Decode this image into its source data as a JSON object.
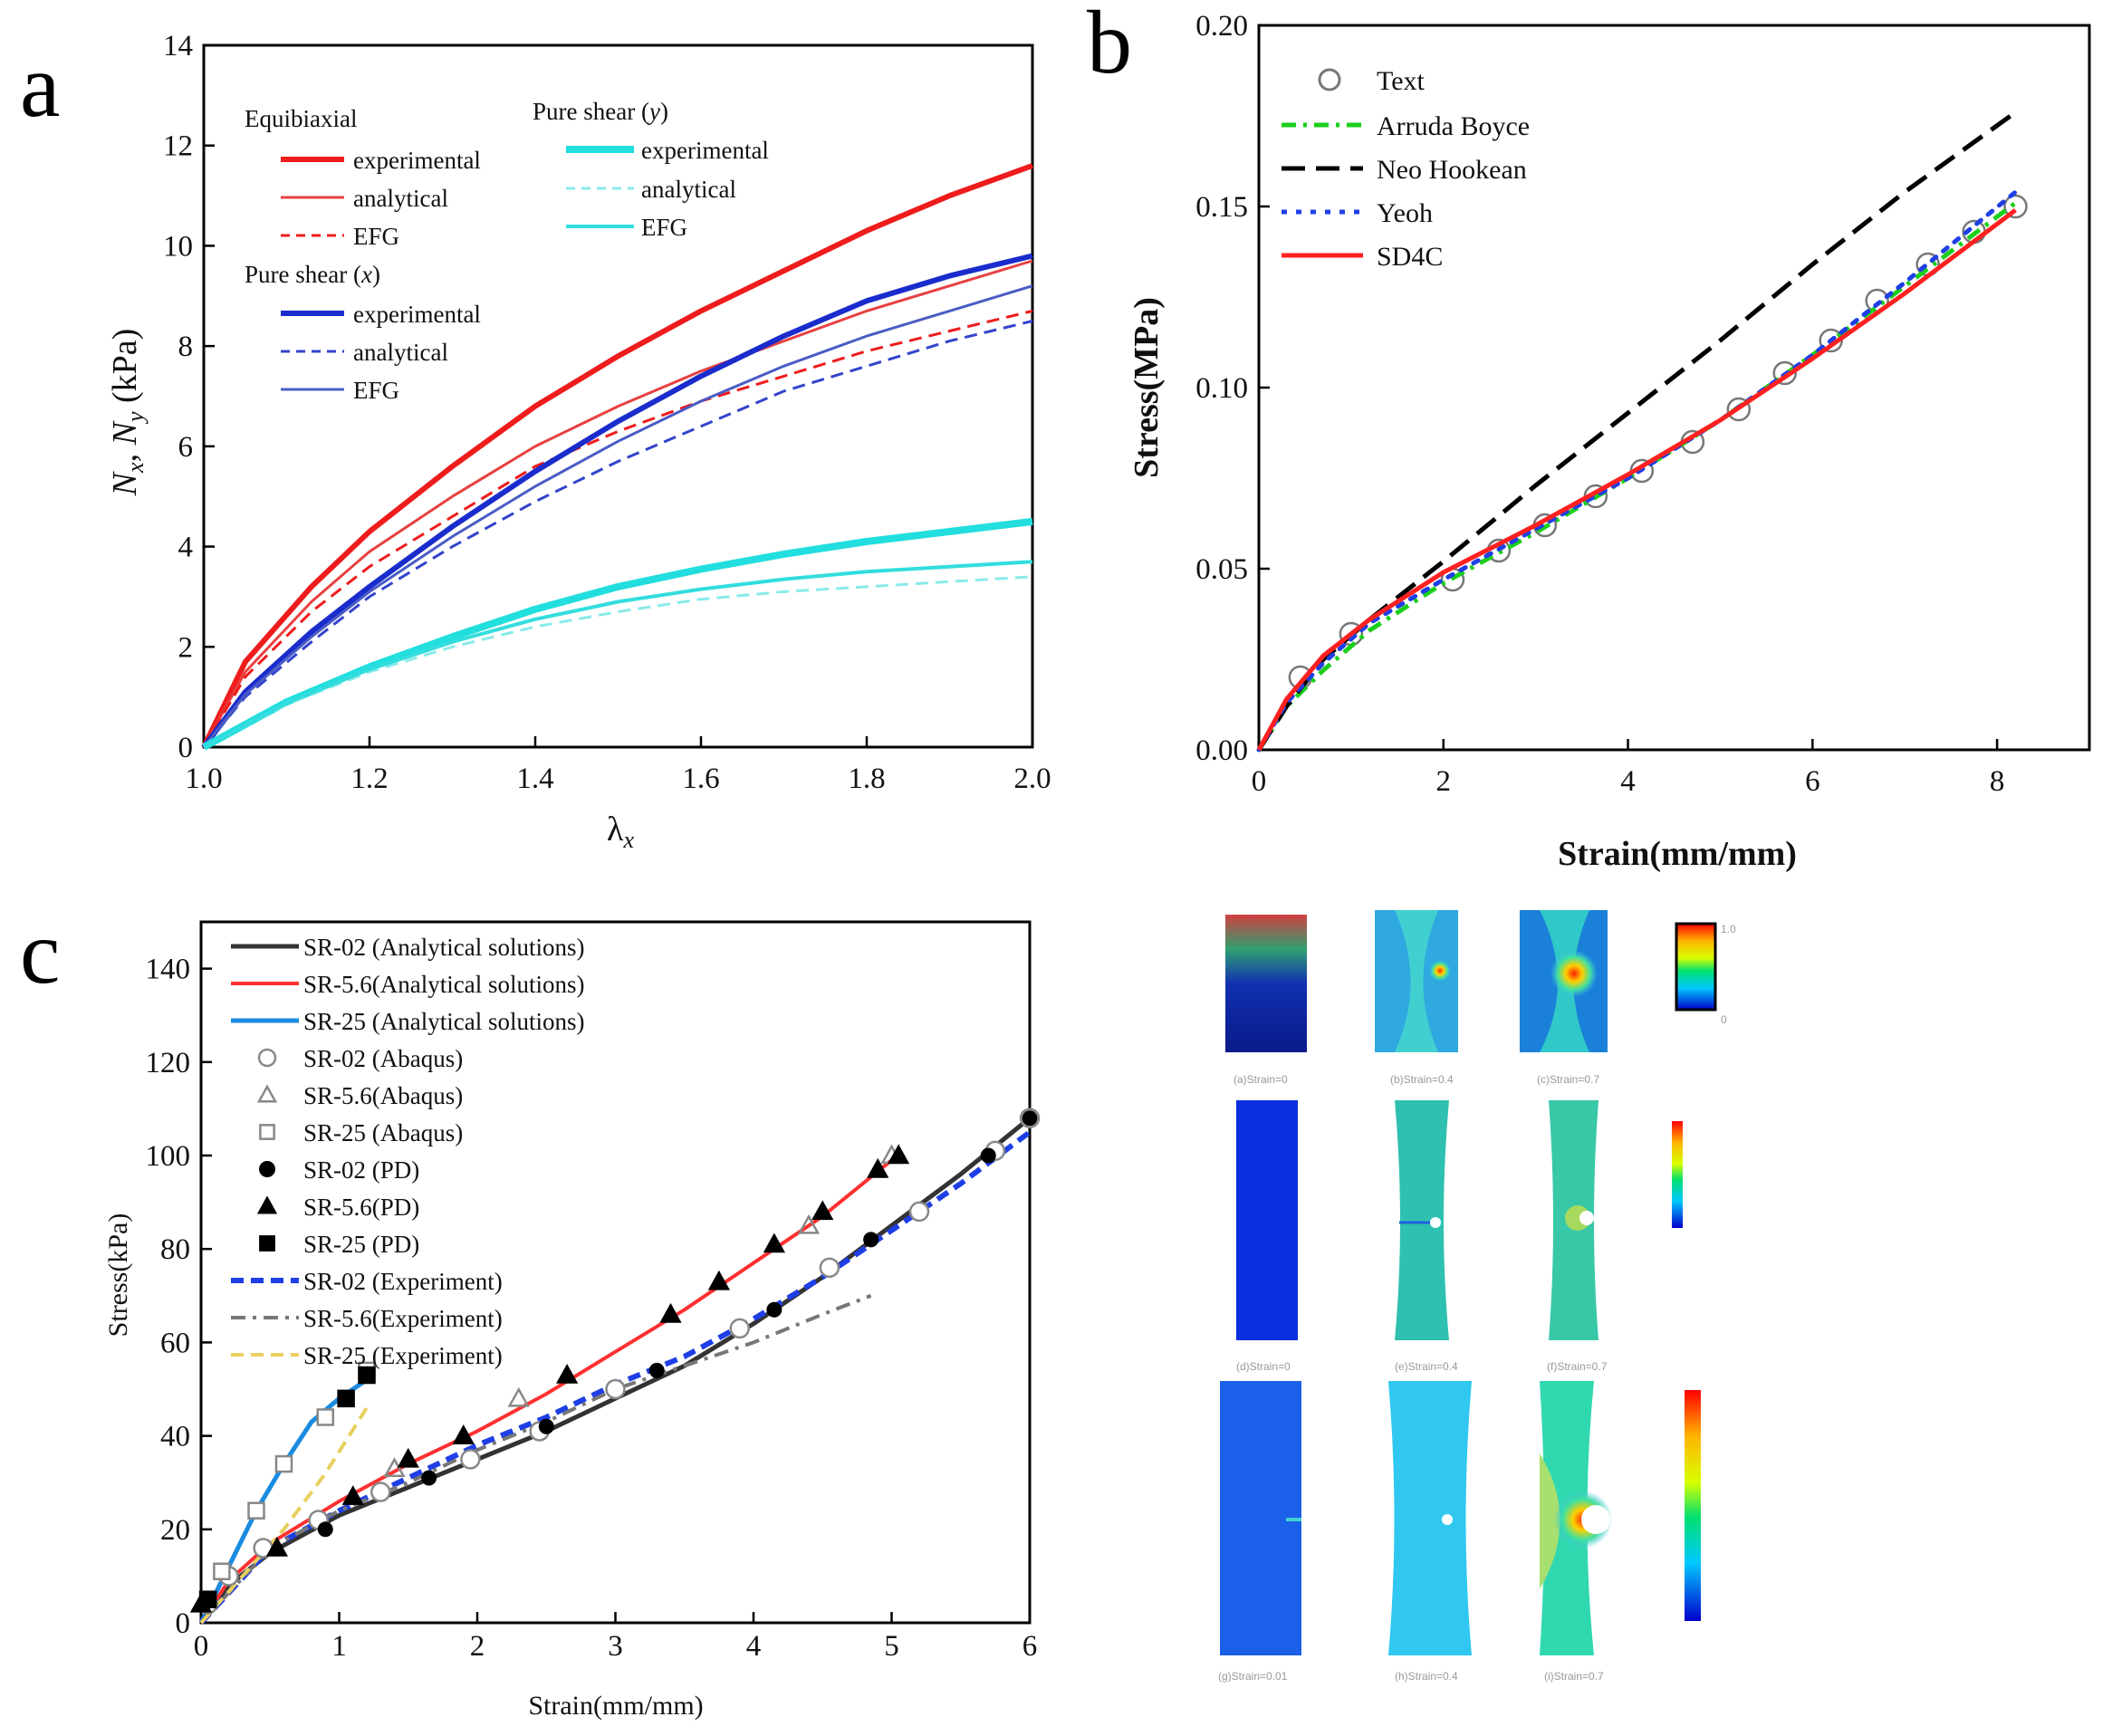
{
  "panels": {
    "a": {
      "letter": "a"
    },
    "b": {
      "letter": "b"
    },
    "c": {
      "letter": "c"
    }
  },
  "chart_data": [
    {
      "panel": "a",
      "type": "line",
      "xlabel": "λ",
      "xlabel_sub": "x",
      "ylabel": "N",
      "ylabel_sub_x": "x",
      "ylabel_sep": ", ",
      "ylabel_sub_y": "y",
      "ylabel_unit": " (kPa)",
      "xlim": [
        1.0,
        2.0
      ],
      "ylim": [
        0,
        14
      ],
      "xticks": [
        "1.0",
        "1.2",
        "1.4",
        "1.6",
        "1.8",
        "2.0"
      ],
      "yticks": [
        "0",
        "2",
        "4",
        "6",
        "8",
        "10",
        "12",
        "14"
      ],
      "legend_groups": [
        {
          "title": "Equibiaxial",
          "items": [
            "experimental",
            "analytical",
            "EFG"
          ]
        },
        {
          "title": "Pure shear (x)",
          "items": [
            "experimental",
            "analytical",
            "EFG"
          ]
        },
        {
          "title": "Pure shear (y)",
          "items": [
            "experimental",
            "analytical",
            "EFG"
          ]
        }
      ],
      "series": [
        {
          "name": "Equibiaxial experimental",
          "color": "#ee1c1c",
          "style": "solid",
          "width": 6,
          "x": [
            1.0,
            1.05,
            1.13,
            1.2,
            1.3,
            1.4,
            1.5,
            1.6,
            1.7,
            1.8,
            1.9,
            2.0
          ],
          "y": [
            0,
            1.7,
            3.2,
            4.3,
            5.6,
            6.8,
            7.8,
            8.7,
            9.5,
            10.3,
            11.0,
            11.6
          ]
        },
        {
          "name": "Equibiaxial analytical",
          "color": "#e84040",
          "style": "solid",
          "width": 3,
          "x": [
            1.0,
            1.05,
            1.13,
            1.2,
            1.3,
            1.4,
            1.5,
            1.6,
            1.7,
            1.8,
            1.9,
            2.0
          ],
          "y": [
            0,
            1.5,
            2.9,
            3.9,
            5.0,
            6.0,
            6.8,
            7.5,
            8.1,
            8.7,
            9.2,
            9.7
          ]
        },
        {
          "name": "Equibiaxial EFG",
          "color": "#ee1c1c",
          "style": "dash",
          "width": 3,
          "x": [
            1.0,
            1.05,
            1.13,
            1.2,
            1.3,
            1.4,
            1.5,
            1.6,
            1.7,
            1.8,
            1.9,
            2.0
          ],
          "y": [
            0,
            1.4,
            2.7,
            3.6,
            4.6,
            5.6,
            6.3,
            6.9,
            7.4,
            7.9,
            8.3,
            8.7
          ]
        },
        {
          "name": "Pure shear (x) experimental",
          "color": "#1a2ccc",
          "style": "solid",
          "width": 6,
          "x": [
            1.0,
            1.05,
            1.13,
            1.2,
            1.3,
            1.4,
            1.5,
            1.6,
            1.7,
            1.8,
            1.9,
            2.0
          ],
          "y": [
            0,
            1.1,
            2.3,
            3.2,
            4.4,
            5.5,
            6.5,
            7.4,
            8.2,
            8.9,
            9.4,
            9.8
          ]
        },
        {
          "name": "Pure shear (x) analytical",
          "color": "#3344cc",
          "style": "dash",
          "width": 3,
          "x": [
            1.0,
            1.05,
            1.13,
            1.2,
            1.3,
            1.4,
            1.5,
            1.6,
            1.7,
            1.8,
            1.9,
            2.0
          ],
          "y": [
            0,
            1.0,
            2.1,
            3.0,
            4.0,
            4.9,
            5.7,
            6.4,
            7.1,
            7.6,
            8.1,
            8.5
          ]
        },
        {
          "name": "Pure shear (x) EFG",
          "color": "#4a5cc4",
          "style": "solid",
          "width": 3,
          "x": [
            1.0,
            1.05,
            1.13,
            1.2,
            1.3,
            1.4,
            1.5,
            1.6,
            1.7,
            1.8,
            1.9,
            2.0
          ],
          "y": [
            0,
            1.05,
            2.2,
            3.1,
            4.2,
            5.2,
            6.1,
            6.9,
            7.6,
            8.2,
            8.7,
            9.2
          ]
        },
        {
          "name": "Pure shear (y) experimental",
          "color": "#22dede",
          "style": "solid",
          "width": 8,
          "x": [
            1.0,
            1.1,
            1.2,
            1.3,
            1.4,
            1.5,
            1.6,
            1.7,
            1.8,
            1.9,
            2.0
          ],
          "y": [
            0,
            0.9,
            1.6,
            2.2,
            2.75,
            3.2,
            3.55,
            3.85,
            4.1,
            4.3,
            4.5
          ]
        },
        {
          "name": "Pure shear (y) analytical",
          "color": "#8aeaea",
          "style": "dash",
          "width": 3,
          "x": [
            1.0,
            1.1,
            1.2,
            1.3,
            1.4,
            1.5,
            1.6,
            1.7,
            1.8,
            1.9,
            2.0
          ],
          "y": [
            0,
            0.85,
            1.5,
            2.0,
            2.4,
            2.7,
            2.95,
            3.1,
            3.2,
            3.3,
            3.4
          ]
        },
        {
          "name": "Pure shear (y) EFG",
          "color": "#33dddd",
          "style": "solid",
          "width": 4,
          "x": [
            1.0,
            1.1,
            1.2,
            1.3,
            1.4,
            1.5,
            1.6,
            1.7,
            1.8,
            1.9,
            2.0
          ],
          "y": [
            0,
            0.88,
            1.55,
            2.1,
            2.55,
            2.9,
            3.15,
            3.35,
            3.5,
            3.6,
            3.7
          ]
        }
      ]
    },
    {
      "panel": "b",
      "type": "line",
      "xlabel": "Strain(mm/mm)",
      "ylabel": "Stress(MPa)",
      "xlim": [
        0,
        9
      ],
      "ylim": [
        0,
        0.2
      ],
      "xticks": [
        "0",
        "2",
        "4",
        "6",
        "8"
      ],
      "yticks": [
        "0.00",
        "0.05",
        "0.10",
        "0.15",
        "0.20"
      ],
      "legend": [
        "Text",
        "Arruda Boyce",
        "Neo Hookean",
        "Yeoh",
        "SD4C"
      ],
      "series": [
        {
          "name": "Text",
          "color": "#777777",
          "style": "marker-circle",
          "x": [
            0.45,
            1.0,
            2.1,
            2.6,
            3.1,
            3.65,
            4.15,
            4.7,
            5.2,
            5.7,
            6.2,
            6.7,
            7.25,
            7.75,
            8.2
          ],
          "y": [
            0.02,
            0.032,
            0.047,
            0.055,
            0.062,
            0.07,
            0.077,
            0.085,
            0.094,
            0.104,
            0.113,
            0.124,
            0.134,
            0.143,
            0.15
          ]
        },
        {
          "name": "Arruda Boyce",
          "color": "#1ccf1c",
          "style": "dashdot",
          "width": 5,
          "x": [
            0,
            0.3,
            0.7,
            1.2,
            2.0,
            3.0,
            4.0,
            5.0,
            6.0,
            7.0,
            8.2
          ],
          "y": [
            0,
            0.012,
            0.022,
            0.033,
            0.046,
            0.06,
            0.075,
            0.091,
            0.109,
            0.128,
            0.151
          ]
        },
        {
          "name": "Neo Hookean",
          "color": "#000000",
          "style": "longdash",
          "width": 5,
          "x": [
            0,
            0.3,
            0.7,
            1.2,
            2.0,
            3.0,
            4.0,
            5.0,
            6.0,
            7.0,
            8.2
          ],
          "y": [
            0,
            0.012,
            0.025,
            0.036,
            0.052,
            0.073,
            0.093,
            0.113,
            0.134,
            0.154,
            0.176
          ]
        },
        {
          "name": "Yeoh",
          "color": "#1f3fe6",
          "style": "dot",
          "width": 5,
          "x": [
            0,
            0.3,
            0.7,
            1.2,
            2.0,
            3.0,
            4.0,
            5.0,
            6.0,
            7.0,
            8.2
          ],
          "y": [
            0,
            0.013,
            0.024,
            0.035,
            0.047,
            0.061,
            0.075,
            0.091,
            0.109,
            0.129,
            0.154
          ]
        },
        {
          "name": "SD4C",
          "color": "#ff2020",
          "style": "solid",
          "width": 5,
          "x": [
            0,
            0.3,
            0.7,
            1.2,
            2.0,
            3.0,
            4.0,
            5.0,
            6.0,
            7.0,
            8.2
          ],
          "y": [
            0,
            0.014,
            0.026,
            0.036,
            0.049,
            0.062,
            0.076,
            0.091,
            0.108,
            0.126,
            0.149
          ]
        }
      ]
    },
    {
      "panel": "c",
      "type": "line",
      "xlabel": "Strain(mm/mm)",
      "ylabel": "Stress(kPa)",
      "xlim": [
        0,
        6
      ],
      "ylim": [
        0,
        150
      ],
      "xticks": [
        "0",
        "1",
        "2",
        "3",
        "4",
        "5",
        "6"
      ],
      "yticks": [
        "0",
        "20",
        "40",
        "60",
        "80",
        "100",
        "120",
        "140"
      ],
      "legend": [
        "SR-02 (Analytical solutions)",
        "SR-5.6(Analytical solutions)",
        "SR-25 (Analytical solutions)",
        "SR-02 (Abaqus)",
        "SR-5.6(Abaqus)",
        "SR-25 (Abaqus)",
        "SR-02 (PD)",
        "SR-5.6(PD)",
        "SR-25 (PD)",
        "SR-02 (Experiment)",
        "SR-5.6(Experiment)",
        "SR-25 (Experiment)"
      ],
      "series": [
        {
          "name": "SR-02 (Analytical solutions)",
          "color": "#333333",
          "style": "solid",
          "width": 5,
          "x": [
            0,
            0.2,
            0.5,
            1.0,
            1.5,
            2.0,
            2.5,
            3.0,
            3.5,
            4.0,
            4.5,
            5.0,
            5.5,
            6.0
          ],
          "y": [
            0,
            8,
            15,
            23,
            29,
            35,
            41,
            48,
            55,
            64,
            74,
            85,
            96,
            108
          ]
        },
        {
          "name": "SR-5.6(Analytical solutions)",
          "color": "#ff3030",
          "style": "solid",
          "width": 4,
          "x": [
            0,
            0.2,
            0.5,
            1.0,
            1.5,
            2.0,
            2.5,
            3.0,
            3.5,
            4.0,
            4.5,
            5.0
          ],
          "y": [
            0,
            9,
            17,
            26,
            34,
            41,
            49,
            58,
            67,
            77,
            87,
            99
          ]
        },
        {
          "name": "SR-25 (Analytical solutions)",
          "color": "#1a8ce0",
          "style": "solid",
          "width": 5,
          "x": [
            0,
            0.1,
            0.2,
            0.4,
            0.6,
            0.8,
            1.0,
            1.2
          ],
          "y": [
            0,
            6,
            12,
            24,
            34,
            43,
            48,
            52
          ]
        },
        {
          "name": "SR-02 (Experiment)",
          "color": "#1f3fe6",
          "style": "dash",
          "width": 6,
          "x": [
            0,
            0.5,
            1.0,
            1.5,
            2.0,
            2.5,
            3.0,
            3.5,
            4.0,
            4.5,
            5.0,
            5.5,
            6.0
          ],
          "y": [
            0,
            16,
            24,
            31,
            38,
            44,
            51,
            57,
            65,
            74,
            84,
            94,
            105
          ]
        },
        {
          "name": "SR-5.6(Experiment)",
          "color": "#777777",
          "style": "dashdot",
          "width": 4,
          "x": [
            0,
            0.5,
            1.0,
            1.5,
            2.0,
            2.5,
            3.0,
            3.5,
            4.0,
            4.5,
            4.85
          ],
          "y": [
            0,
            16,
            24,
            30,
            37,
            43,
            50,
            55,
            60,
            66,
            70
          ]
        },
        {
          "name": "SR-25 (Experiment)",
          "color": "#e8d060",
          "style": "dash",
          "width": 4,
          "x": [
            0,
            0.3,
            0.6,
            0.9,
            1.2
          ],
          "y": [
            0,
            10,
            20,
            32,
            46
          ]
        },
        {
          "name": "SR-02 (Abaqus)",
          "color": "#888888",
          "style": "marker-circle",
          "x": [
            0.05,
            0.2,
            0.45,
            0.85,
            1.3,
            1.95,
            2.45,
            3.0,
            3.9,
            4.55,
            5.2,
            5.75,
            6.0
          ],
          "y": [
            4,
            10,
            16,
            22,
            28,
            35,
            41,
            50,
            63,
            76,
            88,
            101,
            108
          ]
        },
        {
          "name": "SR-5.6(Abaqus)",
          "color": "#888888",
          "style": "marker-triangle",
          "x": [
            1.4,
            2.3,
            4.4,
            5.0
          ],
          "y": [
            33,
            48,
            85,
            100
          ]
        },
        {
          "name": "SR-25 (Abaqus)",
          "color": "#888888",
          "style": "marker-square",
          "x": [
            0.05,
            0.15,
            0.4,
            0.6,
            0.9,
            1.2
          ],
          "y": [
            5,
            11,
            24,
            34,
            44,
            54
          ]
        },
        {
          "name": "SR-02 (PD)",
          "color": "#000000",
          "style": "marker-dot",
          "x": [
            0.05,
            0.9,
            1.65,
            2.5,
            3.3,
            4.15,
            4.85,
            5.7,
            6.0
          ],
          "y": [
            5,
            20,
            31,
            42,
            54,
            67,
            82,
            100,
            108
          ]
        },
        {
          "name": "SR-5.6(PD)",
          "color": "#000000",
          "style": "marker-triangle-fill",
          "x": [
            0.0,
            0.55,
            1.1,
            1.5,
            1.9,
            2.65,
            3.4,
            3.75,
            4.15,
            4.5,
            4.9,
            5.05
          ],
          "y": [
            4,
            16,
            27,
            35,
            40,
            53,
            66,
            73,
            81,
            88,
            97,
            100
          ]
        },
        {
          "name": "SR-25 (PD)",
          "color": "#000000",
          "style": "marker-square-fill",
          "x": [
            0.05,
            1.05,
            1.2
          ],
          "y": [
            5,
            48,
            53
          ]
        }
      ]
    }
  ],
  "fem": {
    "row1_captions": [
      "(a)Strain=0",
      "(b)Strain=0.4",
      "(c)Strain=0.7"
    ],
    "row2_captions": [
      "(d)Strain=0",
      "(e)Strain=0.4",
      "(f)Strain=0.7"
    ],
    "row3_captions": [
      "(g)Strain=0.01",
      "(h)Strain=0.4",
      "(i)Strain=0.7"
    ],
    "colorbar1_top": "1.0",
    "colorbar1_bottom": "0"
  }
}
